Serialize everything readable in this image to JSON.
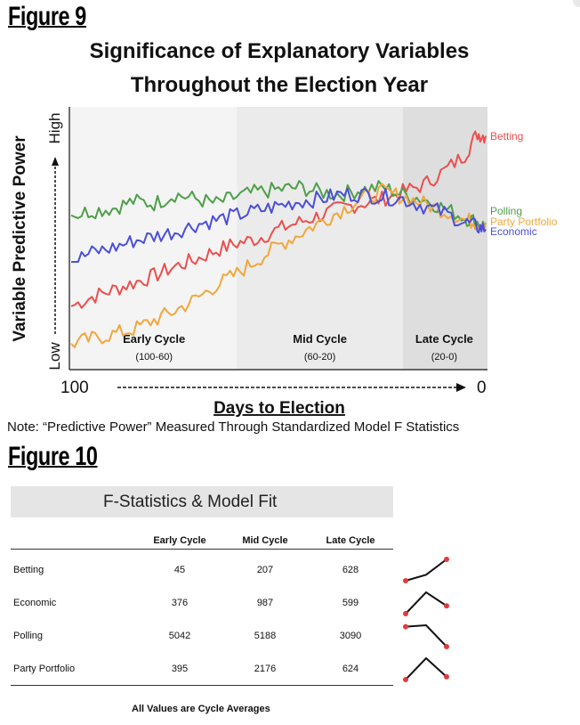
{
  "figure9": {
    "label": "Figure 9",
    "title_line1": "Significance of Explanatory Variables",
    "title_line2": "Throughout the Election Year",
    "ylabel": "Variable Predictive Power",
    "y_low": "Low",
    "y_high": "High",
    "x_start": "100",
    "x_end": "0",
    "xlabel": "Days to Election",
    "note": "Note: “Predictive Power” Measured Through Standardized Model F Statistics",
    "regions": [
      {
        "name": "Early Cycle",
        "range": "(100-60)",
        "shade": "#f4f4f4"
      },
      {
        "name": "Mid Cycle",
        "range": "(60-20)",
        "shade": "#ebebeb"
      },
      {
        "name": "Late Cycle",
        "range": "(20-0)",
        "shade": "#dedede"
      }
    ]
  },
  "chart_data": {
    "type": "line",
    "x": [
      100,
      95,
      90,
      85,
      80,
      75,
      70,
      65,
      60,
      55,
      50,
      45,
      40,
      35,
      30,
      25,
      20,
      15,
      10,
      5,
      2,
      0
    ],
    "xlim": [
      100,
      0
    ],
    "ylim": [
      0,
      100
    ],
    "yaxis_labels": [
      "Low",
      "High"
    ],
    "xlabel": "Days to Election",
    "ylabel": "Variable Predictive Power",
    "grid": false,
    "series": [
      {
        "name": "Betting",
        "color": "#e8504f",
        "values": [
          26,
          30,
          33,
          36,
          39,
          43,
          46,
          50,
          53,
          55,
          59,
          62,
          65,
          68,
          70,
          72,
          75,
          78,
          84,
          91,
          100,
          99
        ]
      },
      {
        "name": "Polling",
        "color": "#4f9e4a",
        "values": [
          65,
          67,
          68,
          71,
          70,
          74,
          72,
          70,
          73,
          75,
          76,
          77,
          75,
          74,
          76,
          77,
          74,
          72,
          68,
          64,
          62,
          60
        ]
      },
      {
        "name": "Party Portfolio",
        "color": "#f0a73c",
        "values": [
          10,
          12,
          14,
          16,
          20,
          24,
          29,
          35,
          40,
          46,
          52,
          57,
          62,
          67,
          72,
          75,
          73,
          70,
          67,
          63,
          62,
          62
        ]
      },
      {
        "name": "Economic",
        "color": "#4b4fd6",
        "values": [
          45,
          49,
          51,
          54,
          56,
          58,
          61,
          63,
          65,
          67,
          69,
          71,
          72,
          74,
          74,
          73,
          72,
          69,
          66,
          62,
          60,
          59
        ]
      }
    ]
  },
  "figure10": {
    "label": "Figure 10",
    "table_title": "F-Statistics & Model Fit",
    "columns": [
      "Early Cycle",
      "Mid Cycle",
      "Late Cycle"
    ],
    "rows": [
      {
        "label": "Betting",
        "values": [
          "45",
          "207",
          "628"
        ]
      },
      {
        "label": "Economic",
        "values": [
          "376",
          "987",
          "599"
        ]
      },
      {
        "label": "Polling",
        "values": [
          "5042",
          "5188",
          "3090"
        ]
      },
      {
        "label": "Party Portfolio",
        "values": [
          "395",
          "2176",
          "624"
        ]
      }
    ],
    "footer": "All Values are Cycle Averages",
    "sparkline_color": "#111111",
    "marker_color": "#e03c3c"
  }
}
